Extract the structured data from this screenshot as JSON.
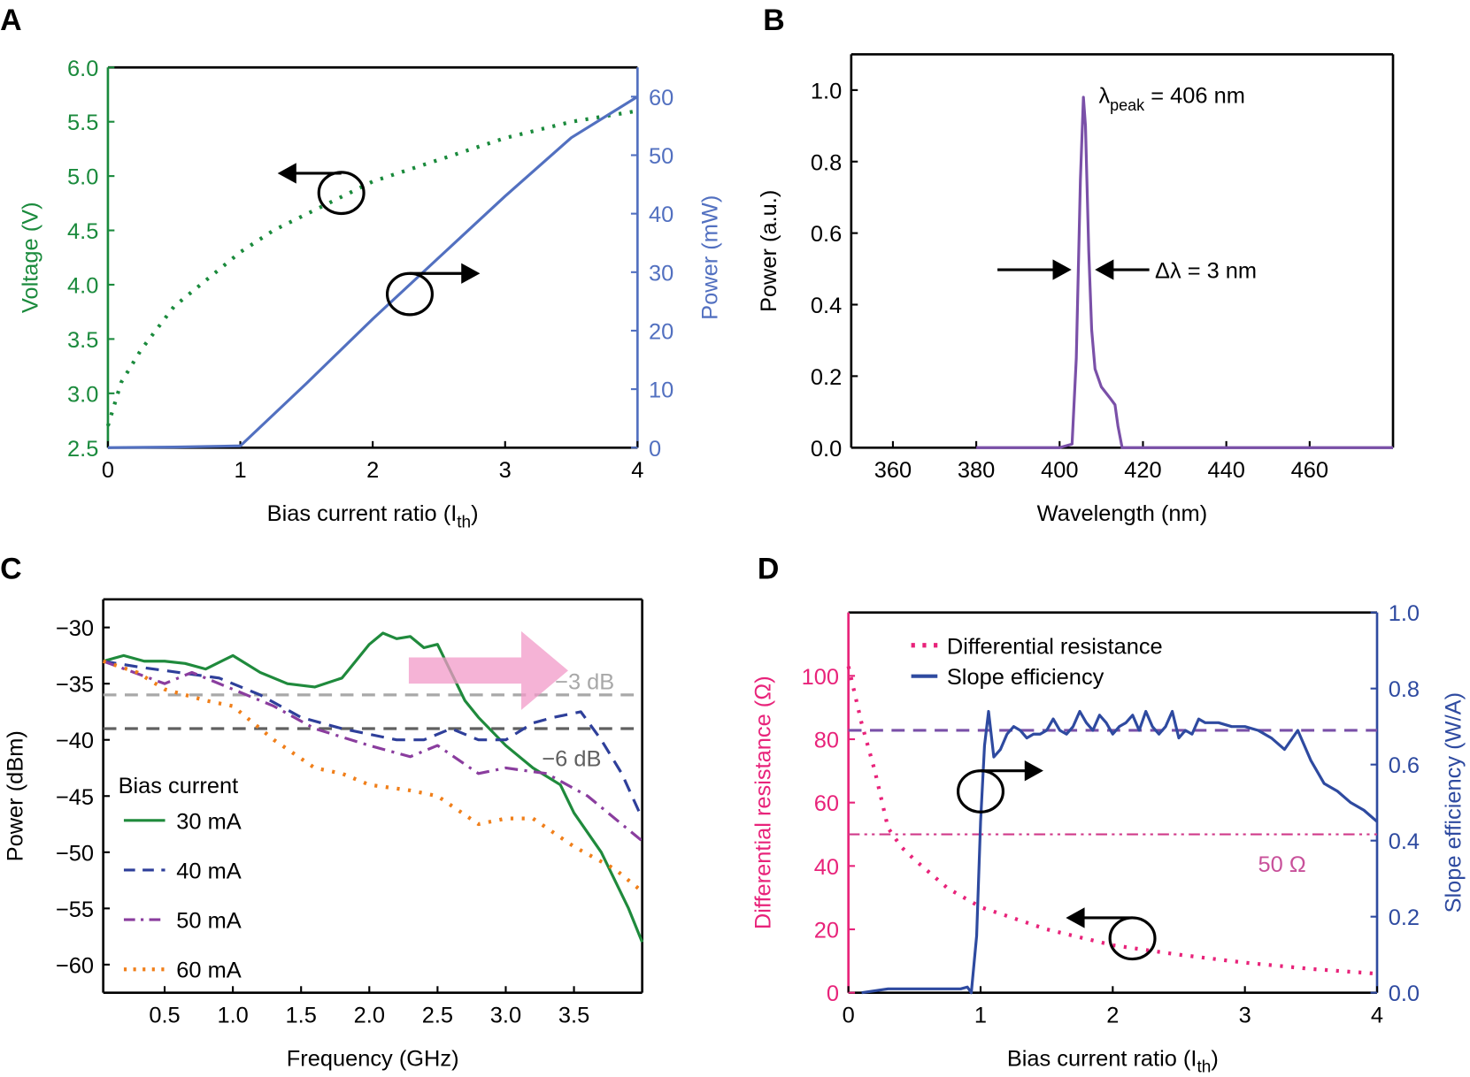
{
  "panels": {
    "a": "A",
    "b": "B",
    "c": "C",
    "d": "D"
  },
  "chart_data": [
    {
      "id": "A",
      "type": "line",
      "xlabel": "Bias current ratio (I",
      "xlabel_sub": "th",
      "xlabel_end": ")",
      "ylabel_left": "Voltage (V)",
      "ylabel_right": "Power (mW)",
      "xlim": [
        0,
        4
      ],
      "ylim_left": [
        2.5,
        6.0
      ],
      "ylim_right": [
        0,
        65
      ],
      "xticks": [
        0,
        1,
        2,
        3,
        4
      ],
      "xtick_labels": [
        "0",
        "1",
        "2",
        "3",
        "4"
      ],
      "yticks_left": [
        2.5,
        3.0,
        3.5,
        4.0,
        4.5,
        5.0,
        5.5,
        6.0
      ],
      "ytick_labels_left": [
        "2.5",
        "3.0",
        "3.5",
        "4.0",
        "4.5",
        "5.0",
        "5.5",
        "6.0"
      ],
      "yticks_right": [
        0,
        10,
        20,
        30,
        40,
        50,
        60
      ],
      "ytick_labels_right": [
        "0",
        "10",
        "20",
        "30",
        "40",
        "50",
        "60"
      ],
      "colors": {
        "left": "#1a8a3c",
        "right": "#5270c0"
      },
      "series": [
        {
          "axis": "left",
          "style": "dotted",
          "color": "#1a8a3c",
          "x": [
            0,
            0.1,
            0.25,
            0.5,
            0.75,
            1,
            1.25,
            1.5,
            2,
            2.5,
            3,
            3.5,
            4
          ],
          "y": [
            2.7,
            3.1,
            3.4,
            3.8,
            4.05,
            4.3,
            4.5,
            4.65,
            4.95,
            5.15,
            5.35,
            5.5,
            5.6
          ]
        },
        {
          "axis": "right",
          "style": "solid",
          "color": "#5270c0",
          "x": [
            0,
            0.5,
            1,
            1.5,
            2,
            2.5,
            3,
            3.5,
            4
          ],
          "y": [
            0,
            0.1,
            0.3,
            11,
            22,
            32.5,
            43,
            53,
            60
          ]
        }
      ]
    },
    {
      "id": "B",
      "type": "line",
      "xlabel": "Wavelength (nm)",
      "ylabel": "Power (a.u.)",
      "xlim": [
        350,
        480
      ],
      "ylim": [
        0,
        1.1
      ],
      "xticks": [
        360,
        380,
        400,
        420,
        440,
        460
      ],
      "xtick_labels": [
        "360",
        "380",
        "400",
        "420",
        "440",
        "460"
      ],
      "yticks": [
        0,
        0.2,
        0.4,
        0.6,
        0.8,
        1.0
      ],
      "ytick_labels": [
        "0.0",
        "0.2",
        "0.4",
        "0.6",
        "0.8",
        "1.0"
      ],
      "annotations": {
        "peak": "λ",
        "peak_sub": "peak",
        "peak_end": " = 406 nm",
        "fwhm": "Δλ = 3 nm"
      },
      "series": [
        {
          "style": "solid",
          "color": "#7a50a8",
          "x": [
            380,
            400,
            403,
            404,
            405,
            405.7,
            406.2,
            407,
            407.7,
            408.5,
            410,
            412,
            413.3,
            414,
            415,
            420,
            480
          ],
          "y": [
            0,
            0,
            0.01,
            0.25,
            0.75,
            0.98,
            0.9,
            0.55,
            0.33,
            0.22,
            0.17,
            0.14,
            0.12,
            0.06,
            0,
            0,
            0
          ]
        }
      ]
    },
    {
      "id": "C",
      "type": "line",
      "xlabel": "Frequency (GHz)",
      "ylabel": "Power (dBm)",
      "xlim": [
        0.05,
        4.0
      ],
      "ylim": [
        -62.5,
        -27.5
      ],
      "xticks": [
        0.5,
        1.0,
        1.5,
        2.0,
        2.5,
        3.0,
        3.5
      ],
      "xtick_labels": [
        "0.5",
        "1.0",
        "1.5",
        "2.0",
        "2.5",
        "3.0",
        "3.5"
      ],
      "yticks": [
        -30,
        -35,
        -40,
        -45,
        -50,
        -55,
        -60
      ],
      "ytick_labels": [
        "−30",
        "−35",
        "−40",
        "−45",
        "−50",
        "−55",
        "−60"
      ],
      "legend_title": "Bias current",
      "legend_position": "bottom-left",
      "reference_lines": [
        {
          "y": -36,
          "label": "−3 dB",
          "color": "#a8a8a8"
        },
        {
          "y": -39,
          "label": "−6 dB",
          "color": "#606060"
        }
      ],
      "series": [
        {
          "name": "30 mA",
          "style": "solid",
          "color": "#1f8a3c",
          "x": [
            0.05,
            0.2,
            0.35,
            0.5,
            0.65,
            0.8,
            1.0,
            1.2,
            1.4,
            1.6,
            1.8,
            1.9,
            2.0,
            2.1,
            2.2,
            2.3,
            2.4,
            2.5,
            2.6,
            2.7,
            2.8,
            3.0,
            3.2,
            3.4,
            3.5,
            3.7,
            3.9,
            4.0
          ],
          "y": [
            -33,
            -32.5,
            -33,
            -33,
            -33.2,
            -33.7,
            -32.5,
            -34,
            -35,
            -35.3,
            -34.5,
            -33,
            -31.5,
            -30.5,
            -31,
            -30.8,
            -31.8,
            -31.5,
            -34,
            -36.5,
            -38,
            -40.5,
            -42.5,
            -44,
            -46.5,
            -50,
            -55,
            -58
          ]
        },
        {
          "name": "40 mA",
          "style": "dashed",
          "color": "#2e3f9a",
          "x": [
            0.05,
            0.3,
            0.6,
            0.9,
            1.2,
            1.5,
            1.8,
            2.0,
            2.2,
            2.4,
            2.6,
            2.8,
            3.0,
            3.2,
            3.35,
            3.55,
            3.7,
            3.85,
            4.0
          ],
          "y": [
            -33,
            -33.5,
            -34,
            -34.5,
            -36,
            -38,
            -39,
            -39.5,
            -40,
            -40,
            -39,
            -40,
            -40,
            -38.5,
            -38,
            -37.5,
            -40,
            -43,
            -47
          ]
        },
        {
          "name": "50 mA",
          "style": "dashdot",
          "color": "#8a3d9e",
          "x": [
            0.05,
            0.5,
            0.7,
            1.0,
            1.3,
            1.6,
            2.0,
            2.3,
            2.5,
            2.8,
            3.0,
            3.3,
            3.6,
            3.9,
            4.0
          ],
          "y": [
            -33,
            -35,
            -34,
            -35.5,
            -37,
            -39,
            -40.5,
            -41.5,
            -40.5,
            -43,
            -42.5,
            -43,
            -45,
            -48,
            -49
          ]
        },
        {
          "name": "60 mA",
          "style": "dotted",
          "color": "#f07f1a",
          "x": [
            0.05,
            0.3,
            0.5,
            0.8,
            1.0,
            1.3,
            1.6,
            1.8,
            2.0,
            2.3,
            2.5,
            2.8,
            3.0,
            3.2,
            3.5,
            3.8,
            4.0
          ],
          "y": [
            -33,
            -34,
            -35.5,
            -36.5,
            -37,
            -40,
            -42.5,
            -43,
            -44,
            -44.5,
            -45,
            -47.5,
            -47,
            -47,
            -49.5,
            -51.5,
            -53.5
          ]
        }
      ]
    },
    {
      "id": "D",
      "type": "line",
      "xlabel": "Bias current ratio (I",
      "xlabel_sub": "th",
      "xlabel_end": ")",
      "ylabel_left": "Differential resistance (Ω)",
      "ylabel_right": "Slope efficiency (W/A)",
      "xlim": [
        0,
        4
      ],
      "ylim_left": [
        0,
        120
      ],
      "ylim_right": [
        0,
        1.0
      ],
      "xticks": [
        0,
        1,
        2,
        3,
        4
      ],
      "xtick_labels": [
        "0",
        "1",
        "2",
        "3",
        "4"
      ],
      "yticks_left": [
        0,
        20,
        40,
        60,
        80,
        100
      ],
      "ytick_labels_left": [
        "0",
        "20",
        "40",
        "60",
        "80",
        "100"
      ],
      "yticks_right": [
        0,
        0.2,
        0.4,
        0.6,
        0.8,
        1.0
      ],
      "ytick_labels_right": [
        "0.0",
        "0.2",
        "0.4",
        "0.6",
        "0.8",
        "1.0"
      ],
      "colors": {
        "left": "#e8237a",
        "right": "#2e4aa0"
      },
      "legend_position": "top-left",
      "reference_lines": [
        {
          "axis": "right",
          "y": 0.69,
          "style": "dashed",
          "color": "#7a50a8"
        },
        {
          "axis": "left",
          "y": 50,
          "style": "dashdotdot",
          "color": "#d03a8a",
          "label": "50 Ω"
        }
      ],
      "series": [
        {
          "name": "Differential resistance",
          "axis": "left",
          "style": "dotted",
          "color": "#e8237a",
          "x": [
            0,
            0.1,
            0.2,
            0.3,
            0.4,
            0.5,
            0.75,
            1,
            1.5,
            2,
            2.5,
            3,
            3.5,
            4
          ],
          "y": [
            103,
            85,
            70,
            52,
            46,
            42,
            33,
            27,
            20,
            15,
            12,
            9.5,
            7.5,
            6
          ]
        },
        {
          "name": "Slope efficiency",
          "axis": "right",
          "style": "solid",
          "color": "#2e4aa0",
          "x": [
            0.1,
            0.3,
            0.5,
            0.85,
            0.9,
            0.93,
            0.97,
            1.0,
            1.03,
            1.06,
            1.1,
            1.15,
            1.2,
            1.25,
            1.3,
            1.35,
            1.4,
            1.45,
            1.5,
            1.55,
            1.6,
            1.65,
            1.7,
            1.75,
            1.8,
            1.85,
            1.9,
            1.95,
            2.0,
            2.05,
            2.1,
            2.15,
            2.2,
            2.25,
            2.3,
            2.35,
            2.4,
            2.45,
            2.5,
            2.55,
            2.6,
            2.65,
            2.7,
            2.8,
            2.9,
            3.0,
            3.1,
            3.2,
            3.3,
            3.4,
            3.5,
            3.6,
            3.7,
            3.8,
            3.9,
            4.0
          ],
          "y": [
            0,
            0.01,
            0.01,
            0.01,
            0.015,
            0,
            0.15,
            0.45,
            0.65,
            0.74,
            0.62,
            0.64,
            0.68,
            0.7,
            0.69,
            0.67,
            0.68,
            0.68,
            0.69,
            0.72,
            0.69,
            0.68,
            0.7,
            0.74,
            0.71,
            0.69,
            0.73,
            0.71,
            0.68,
            0.7,
            0.71,
            0.73,
            0.69,
            0.74,
            0.7,
            0.68,
            0.7,
            0.74,
            0.67,
            0.69,
            0.68,
            0.72,
            0.71,
            0.71,
            0.7,
            0.7,
            0.69,
            0.67,
            0.64,
            0.69,
            0.61,
            0.55,
            0.53,
            0.5,
            0.48,
            0.45
          ]
        }
      ]
    }
  ]
}
